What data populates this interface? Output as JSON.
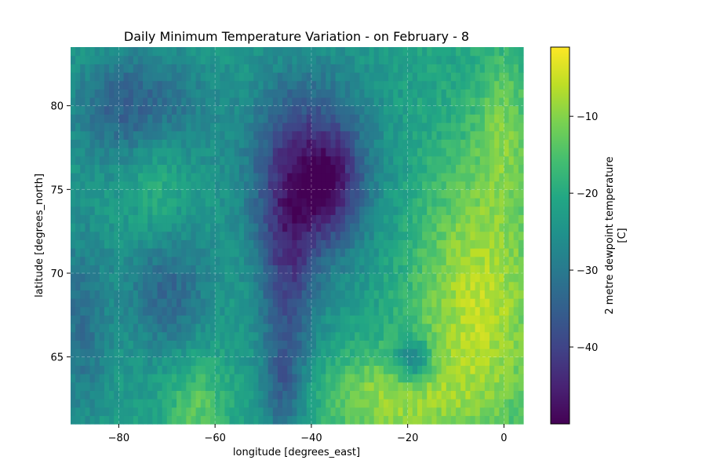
{
  "chart_data": {
    "type": "heatmap",
    "title": "Daily Minimum Temperature Variation - on February - 8",
    "xlabel": "longitude [degrees_east]",
    "ylabel": "latitude [degrees_north]",
    "xlim": [
      -90,
      4
    ],
    "ylim": [
      61,
      83.5
    ],
    "xticks": [
      -80,
      -60,
      -40,
      -20,
      0
    ],
    "xtick_labels": [
      "−80",
      "−60",
      "−40",
      "−20",
      "0"
    ],
    "yticks": [
      65,
      70,
      75,
      80
    ],
    "ytick_labels": [
      "65",
      "70",
      "75",
      "80"
    ],
    "grid": true,
    "colorbar": {
      "label_line1": "2 metre dewpoint temperature",
      "label_line2": "[C]",
      "vmin": -50,
      "vmax": -1,
      "colormap": "viridis",
      "ticks": [
        -10,
        -20,
        -30,
        -40
      ],
      "tick_labels": [
        "−10",
        "−20",
        "−30",
        "−40"
      ]
    },
    "field_features": {
      "lon_step": 1,
      "lat_step": 0.5,
      "ice_sheet_core": {
        "lon": -36,
        "lat": 75.5,
        "value": -49
      },
      "east_coast_warm": {
        "value": -5
      },
      "west_baffin": {
        "value": -22
      },
      "iceland_like_patch": {
        "lon": -19,
        "lat": 64.8,
        "value": -28
      }
    }
  }
}
